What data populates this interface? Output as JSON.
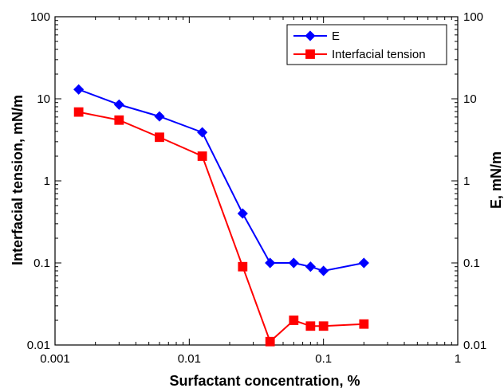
{
  "chart_data": {
    "type": "line",
    "title": "",
    "xlabel": "Surfactant concentration, %",
    "ylabel_left": "Interfacial tension, mN/m",
    "ylabel_right": "E, mN/m",
    "xscale": "log",
    "yscale": "log",
    "xlim": [
      0.001,
      1
    ],
    "ylim": [
      0.01,
      100
    ],
    "grid": false,
    "legend_position": "top-right",
    "x_ticks": [
      {
        "value": 0.001,
        "label": "0.001"
      },
      {
        "value": 0.01,
        "label": "0.01"
      },
      {
        "value": 0.1,
        "label": "0.1"
      },
      {
        "value": 1,
        "label": "1"
      }
    ],
    "y_ticks": [
      {
        "value": 0.01,
        "label": "0.01"
      },
      {
        "value": 0.1,
        "label": "0.1"
      },
      {
        "value": 1,
        "label": "1"
      },
      {
        "value": 10,
        "label": "10"
      },
      {
        "value": 100,
        "label": "100"
      }
    ],
    "series": [
      {
        "name": "E",
        "color": "#0000ff",
        "marker": "diamond",
        "x": [
          0.0015,
          0.003,
          0.006,
          0.0125,
          0.025,
          0.04,
          0.06,
          0.08,
          0.1,
          0.2
        ],
        "y": [
          13,
          8.5,
          6.1,
          3.9,
          0.4,
          0.1,
          0.1,
          0.09,
          0.08,
          0.1
        ]
      },
      {
        "name": "Interfacial tension",
        "color": "#ff0000",
        "marker": "square",
        "x": [
          0.0015,
          0.003,
          0.006,
          0.0125,
          0.025,
          0.04,
          0.06,
          0.08,
          0.1,
          0.2
        ],
        "y": [
          6.9,
          5.5,
          3.4,
          2.0,
          0.09,
          0.011,
          0.02,
          0.017,
          0.017,
          0.018
        ]
      }
    ]
  }
}
